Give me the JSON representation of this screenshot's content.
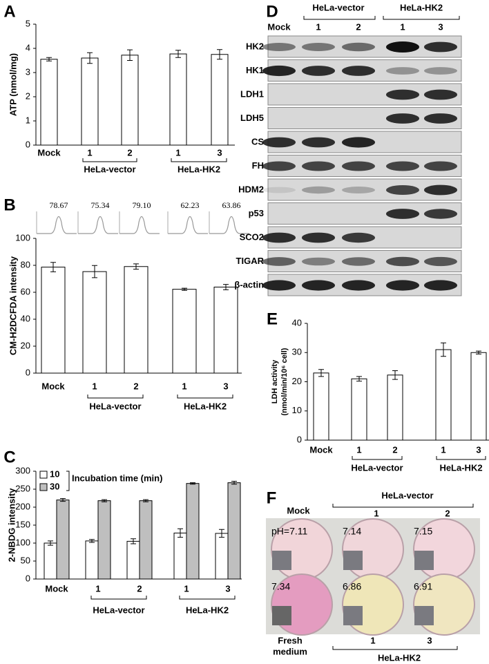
{
  "chart_data": [
    {
      "type": "bar",
      "label": "A",
      "ylabel": "ATP (nmol/mg)",
      "categories": [
        "Mock",
        "1",
        "2",
        "1",
        "3"
      ],
      "groups": [
        "HeLa-vector",
        "HeLa-HK2"
      ],
      "values": [
        3.55,
        3.6,
        3.72,
        3.77,
        3.75
      ],
      "errors": [
        0.07,
        0.22,
        0.22,
        0.15,
        0.2
      ],
      "color": "#ffffff",
      "ylim": [
        0,
        5
      ],
      "yticks": [
        0,
        1,
        2,
        3,
        4,
        5
      ]
    },
    {
      "type": "bar",
      "label": "B",
      "ylabel": "CM-H2DCFDA intensity",
      "categories": [
        "Mock",
        "1",
        "2",
        "1",
        "3"
      ],
      "groups": [
        "HeLa-vector",
        "HeLa-HK2"
      ],
      "values": [
        78.67,
        75.34,
        79.1,
        62.23,
        63.86
      ],
      "value_labels": [
        "78.67",
        "75.34",
        "79.10",
        "62.23",
        "63.86"
      ],
      "errors": [
        3.5,
        4.5,
        2,
        0.8,
        2
      ],
      "color": "#ffffff",
      "ylim": [
        0,
        100
      ],
      "yticks": [
        0,
        20,
        40,
        60,
        80,
        100
      ]
    },
    {
      "type": "grouped-bar",
      "label": "C",
      "ylabel": "2-NBDG intensity",
      "legend_title": "Incubation time (min)",
      "categories": [
        "Mock",
        "1",
        "2",
        "1",
        "3"
      ],
      "groups": [
        "HeLa-vector",
        "HeLa-HK2"
      ],
      "series": [
        {
          "name": "10",
          "color": "#ffffff",
          "values": [
            100,
            106,
            105,
            128,
            127
          ],
          "errors": [
            6,
            4,
            7,
            12,
            11
          ]
        },
        {
          "name": "30",
          "color": "#bfbfbf",
          "values": [
            220,
            218,
            218,
            266,
            268
          ],
          "errors": [
            4,
            3,
            3,
            2,
            4
          ]
        }
      ],
      "ylim": [
        0,
        300
      ],
      "yticks": [
        0,
        50,
        100,
        150,
        200,
        250,
        300
      ]
    },
    {
      "type": "bar",
      "label": "E",
      "ylabel": [
        "LDH activity",
        "(nmol/min/10⁶ cell)"
      ],
      "categories": [
        "Mock",
        "1",
        "2",
        "1",
        "3"
      ],
      "groups": [
        "HeLa-vector",
        "HeLa-HK2"
      ],
      "values": [
        23,
        21,
        22.3,
        31,
        30
      ],
      "errors": [
        1.2,
        0.8,
        1.5,
        2.3,
        0.5
      ],
      "color": "#ffffff",
      "ylim": [
        0,
        40
      ],
      "yticks": [
        0,
        10,
        20,
        30,
        40
      ]
    }
  ],
  "blot": {
    "label": "D",
    "lanes": [
      "Mock",
      "1",
      "2",
      "1",
      "3"
    ],
    "groups": [
      "HeLa-vector",
      "HeLa-HK2"
    ],
    "proteins": [
      "HK2",
      "HK1",
      "LDH1",
      "LDH5",
      "CS",
      "FH",
      "HDM2",
      "p53",
      "SCO2",
      "TIGAR",
      "β-actin"
    ]
  },
  "photo": {
    "label": "F",
    "top_labels": [
      "Mock",
      "HeLa-vector",
      "1",
      "2"
    ],
    "bottom_labels": [
      "Fresh",
      "medium",
      "1",
      "3",
      "HeLa-HK2"
    ],
    "ph_labels": [
      "pH=7.11",
      "7.14",
      "7.15",
      "7.34",
      "6.86",
      "6.91"
    ]
  }
}
